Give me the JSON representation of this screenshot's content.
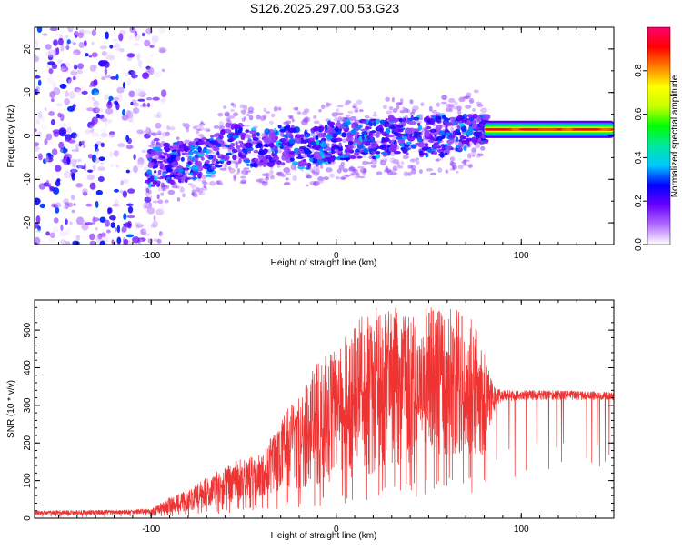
{
  "title": "S126.2025.297.00.53.G23",
  "chart_data": [
    {
      "type": "heatmap",
      "xlabel": "Height of straight line (km)",
      "ylabel": "Frequency (Hz)",
      "xlim": [
        -163,
        150
      ],
      "ylim": [
        -25,
        25
      ],
      "xticks": [
        -100,
        0,
        100
      ],
      "yticks": [
        -20,
        -10,
        0,
        10,
        20
      ],
      "colorbar": {
        "label": "Normalized spectral amplitude",
        "range": [
          0,
          1
        ],
        "ticks": [
          "0.0",
          "0.2",
          "0.4",
          "0.6",
          "0.8"
        ],
        "tick_values": [
          0,
          0.2,
          0.4,
          0.6,
          0.8
        ],
        "colormap": [
          "#ffffff",
          "#b06cff",
          "#6a00ff",
          "#0000ff",
          "#00c8ff",
          "#00e8a0",
          "#00ff00",
          "#c8ff00",
          "#ffff00",
          "#ff8000",
          "#ff0000",
          "#ff0070"
        ]
      },
      "features": [
        {
          "description": "uniform noise band",
          "x_range": [
            -163,
            -93
          ],
          "freq_range": [
            -25,
            25
          ],
          "amplitude": 0.12
        },
        {
          "description": "main tone track",
          "points": [
            [
              -100,
              -7
            ],
            [
              -85,
              -6
            ],
            [
              -70,
              -5
            ],
            [
              -55,
              -1
            ],
            [
              -45,
              -3
            ],
            [
              -30,
              -2
            ],
            [
              -15,
              -3
            ],
            [
              0,
              -1
            ],
            [
              15,
              -1
            ],
            [
              30,
              0
            ],
            [
              45,
              0
            ],
            [
              60,
              0
            ],
            [
              70,
              1
            ],
            [
              80,
              1.5
            ],
            [
              100,
              1.5
            ],
            [
              120,
              1.5
            ],
            [
              150,
              1
            ]
          ],
          "amplitude": 0.3
        },
        {
          "description": "strong line",
          "x_range": [
            80,
            150
          ],
          "freq": 1.5,
          "amplitude": 0.95
        }
      ]
    },
    {
      "type": "line",
      "xlabel": "Height of straight line (km)",
      "ylabel": "SNR (10 * v/v)",
      "xlim": [
        -163,
        150
      ],
      "ylim": [
        0,
        580
      ],
      "xticks": [
        -100,
        0,
        100
      ],
      "yticks": [
        0,
        100,
        200,
        300,
        400,
        500
      ],
      "color": "#ee3333",
      "envelope": {
        "x": [
          -163,
          -120,
          -100,
          -90,
          -80,
          -70,
          -60,
          -50,
          -40,
          -30,
          -20,
          -10,
          0,
          10,
          20,
          30,
          40,
          50,
          60,
          70,
          80,
          85,
          90,
          100,
          120,
          150
        ],
        "low": [
          8,
          10,
          12,
          14,
          20,
          30,
          40,
          50,
          60,
          75,
          80,
          90,
          100,
          110,
          120,
          130,
          150,
          170,
          170,
          175,
          160,
          280,
          310,
          315,
          315,
          315
        ],
        "high": [
          20,
          22,
          25,
          55,
          75,
          110,
          140,
          160,
          170,
          270,
          340,
          420,
          450,
          520,
          560,
          560,
          560,
          560,
          560,
          560,
          470,
          350,
          340,
          340,
          340,
          335
        ]
      }
    }
  ]
}
